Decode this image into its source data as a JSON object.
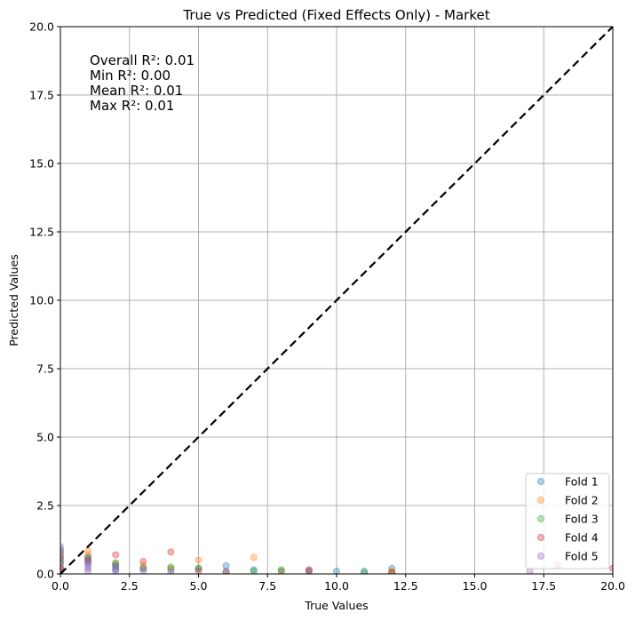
{
  "chart_data": {
    "type": "scatter",
    "title": "True vs Predicted (Fixed Effects Only) - Market",
    "xlabel": "True Values",
    "ylabel": "Predicted Values",
    "xlim": [
      0,
      20
    ],
    "ylim": [
      0,
      20
    ],
    "xticks": [
      "0.0",
      "2.5",
      "5.0",
      "7.5",
      "10.0",
      "12.5",
      "15.0",
      "17.5",
      "20.0"
    ],
    "yticks": [
      "0.0",
      "2.5",
      "5.0",
      "7.5",
      "10.0",
      "12.5",
      "15.0",
      "17.5",
      "20.0"
    ],
    "grid": true,
    "legend_position": "bottom-right",
    "reference_line": {
      "x": [
        0,
        20
      ],
      "y": [
        0,
        20
      ],
      "style": "dashed",
      "color": "#000000"
    },
    "annotation": [
      "Overall R²: 0.01",
      "Min R²: 0.00",
      "Mean R²: 0.01",
      "Max R²: 0.01"
    ],
    "series": [
      {
        "name": "Fold 1",
        "color": "#1f77b4",
        "points": [
          [
            0,
            0.9
          ],
          [
            0,
            0.5
          ],
          [
            0,
            0.2
          ],
          [
            1,
            0.6
          ],
          [
            1,
            0.4
          ],
          [
            2,
            0.3
          ],
          [
            2,
            0.15
          ],
          [
            3,
            0.2
          ],
          [
            4,
            0.15
          ],
          [
            5,
            0.2
          ],
          [
            6,
            0.3
          ],
          [
            6,
            0.1
          ],
          [
            7,
            0.15
          ],
          [
            8,
            0.1
          ],
          [
            10,
            0.1
          ],
          [
            11,
            0.05
          ],
          [
            12,
            0.2
          ]
        ]
      },
      {
        "name": "Fold 2",
        "color": "#ff7f0e",
        "points": [
          [
            0,
            0.8
          ],
          [
            0,
            0.3
          ],
          [
            1,
            0.85
          ],
          [
            1,
            0.7
          ],
          [
            2,
            0.4
          ],
          [
            3,
            0.3
          ],
          [
            4,
            0.2
          ],
          [
            5,
            0.5
          ],
          [
            7,
            0.6
          ],
          [
            8,
            0.1
          ],
          [
            9,
            0.1
          ],
          [
            12,
            0.1
          ]
        ]
      },
      {
        "name": "Fold 3",
        "color": "#2ca02c",
        "points": [
          [
            0,
            0.7
          ],
          [
            0,
            0.4
          ],
          [
            1,
            0.6
          ],
          [
            1,
            0.5
          ],
          [
            2,
            0.4
          ],
          [
            2,
            0.3
          ],
          [
            3,
            0.2
          ],
          [
            4,
            0.25
          ],
          [
            5,
            0.2
          ],
          [
            7,
            0.1
          ],
          [
            8,
            0.15
          ],
          [
            9,
            0.1
          ],
          [
            11,
            0.1
          ],
          [
            12,
            0.05
          ]
        ]
      },
      {
        "name": "Fold 4",
        "color": "#d62728",
        "points": [
          [
            0,
            0.6
          ],
          [
            0,
            0.2
          ],
          [
            1,
            0.5
          ],
          [
            2,
            0.7
          ],
          [
            3,
            0.45
          ],
          [
            4,
            0.8
          ],
          [
            5,
            0.1
          ],
          [
            6,
            0.05
          ],
          [
            9,
            0.15
          ],
          [
            12,
            0.05
          ],
          [
            18,
            0.3
          ],
          [
            20,
            0.2
          ]
        ]
      },
      {
        "name": "Fold 5",
        "color": "#9467bd",
        "points": [
          [
            0,
            1.0
          ],
          [
            0,
            0.8
          ],
          [
            0,
            0.6
          ],
          [
            0,
            0.4
          ],
          [
            0,
            0.2
          ],
          [
            0,
            0.1
          ],
          [
            1,
            0.5
          ],
          [
            1,
            0.4
          ],
          [
            1,
            0.3
          ],
          [
            1,
            0.2
          ],
          [
            1,
            0.1
          ],
          [
            2,
            0.3
          ],
          [
            2,
            0.2
          ],
          [
            2,
            0.1
          ],
          [
            3,
            0.1
          ],
          [
            4,
            0.05
          ],
          [
            9,
            0.12
          ],
          [
            17,
            0.1
          ]
        ]
      }
    ]
  }
}
